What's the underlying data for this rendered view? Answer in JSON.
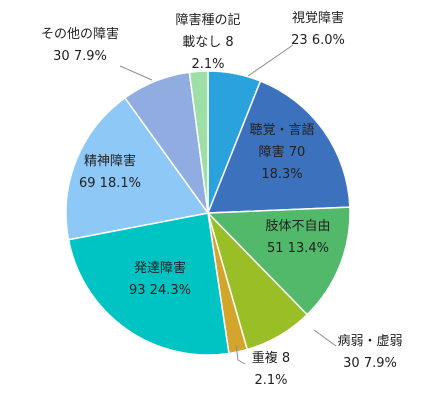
{
  "chart_data": {
    "type": "pie",
    "title": "",
    "legend": "none",
    "start_angle_deg": 0,
    "direction": "clockwise",
    "slices": [
      {
        "name": "視覚障害",
        "value": 23,
        "percent": "6.0%",
        "color": "#2AA2DB",
        "label_lines": [
          "視覚障害",
          "23 6.0%"
        ],
        "leader": true
      },
      {
        "name": "聴覚・言語障害",
        "value": 70,
        "percent": "18.3%",
        "color": "#3C72BD",
        "label_lines": [
          "聴覚・言語",
          "障害 70",
          "18.3%"
        ],
        "leader": false
      },
      {
        "name": "肢体不自由",
        "value": 51,
        "percent": "13.4%",
        "color": "#52B86A",
        "label_lines": [
          "肢体不自由",
          "51 13.4%"
        ],
        "leader": false
      },
      {
        "name": "病弱・虚弱",
        "value": 30,
        "percent": "7.9%",
        "color": "#9ABE25",
        "label_lines": [
          "病弱・虚弱",
          "30 7.9%"
        ],
        "leader": true
      },
      {
        "name": "重複",
        "value": 8,
        "percent": "2.1%",
        "color": "#D4A52D",
        "label_lines": [
          "重複 8",
          "2.1%"
        ],
        "leader": true
      },
      {
        "name": "発達障害",
        "value": 93,
        "percent": "24.3%",
        "color": "#00C4C4",
        "label_lines": [
          "発達障害",
          "93 24.3%"
        ],
        "leader": false
      },
      {
        "name": "精神障害",
        "value": 69,
        "percent": "18.1%",
        "color": "#8DC8F6",
        "label_lines": [
          "精神障害",
          "69 18.1%"
        ],
        "leader": false
      },
      {
        "name": "その他の障害",
        "value": 30,
        "percent": "7.9%",
        "color": "#91ACE0",
        "label_lines": [
          "その他の障害",
          "30 7.9%"
        ],
        "leader": true
      },
      {
        "name": "障害種の記載なし",
        "value": 8,
        "percent": "2.1%",
        "color": "#9DDFA6",
        "label_lines": [
          "障害種の記",
          "載なし 8",
          "2.1%"
        ],
        "leader": false
      }
    ]
  }
}
